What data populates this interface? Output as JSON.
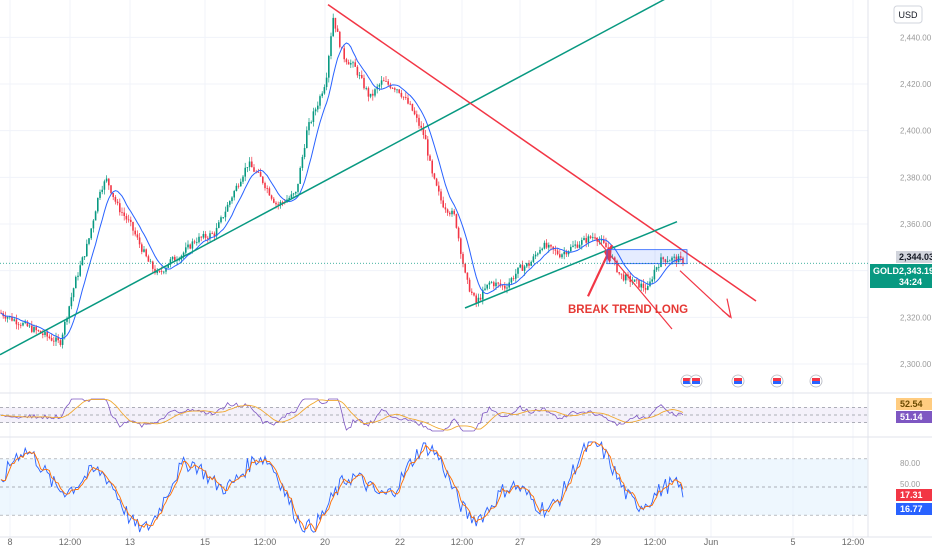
{
  "header": {
    "currency_label": "USD"
  },
  "colors": {
    "up": "#089981",
    "down": "#f23645",
    "ma": "#2962ff",
    "trend_red": "#f23645",
    "trend_green": "#089981",
    "rsi": "#7e57c2",
    "rsi_ma": "#f0a830",
    "stoch_k": "#2962ff",
    "stoch_d": "#ff6d00",
    "grid": "#f0f3fa",
    "band_fill": "#ede7f6"
  },
  "chart_data": [
    {
      "type": "candlestick",
      "symbol": "GOLD",
      "title": "",
      "xlabel": "",
      "ylabel": "",
      "ylim": [
        2288,
        2456
      ],
      "yticks": [
        "2,300.00",
        "2,320.00",
        "2,340.00",
        "2,360.00",
        "2,380.00",
        "2,400.00",
        "2,420.00",
        "2,440.00"
      ],
      "xticks": [
        "8",
        "12:00",
        "13",
        "15",
        "12:00",
        "20",
        "22",
        "12:00",
        "27",
        "29",
        "12:00",
        "Jun",
        "5",
        "12:00"
      ],
      "price_path": [
        [
          0,
          2322
        ],
        [
          60,
          2309
        ],
        [
          75,
          2335
        ],
        [
          88,
          2352
        ],
        [
          100,
          2375
        ],
        [
          107,
          2379
        ],
        [
          117,
          2368
        ],
        [
          130,
          2360
        ],
        [
          148,
          2344
        ],
        [
          158,
          2338
        ],
        [
          170,
          2344
        ],
        [
          182,
          2347
        ],
        [
          195,
          2353
        ],
        [
          215,
          2356
        ],
        [
          232,
          2372
        ],
        [
          248,
          2386
        ],
        [
          262,
          2379
        ],
        [
          277,
          2368
        ],
        [
          296,
          2373
        ],
        [
          307,
          2400
        ],
        [
          318,
          2412
        ],
        [
          326,
          2422
        ],
        [
          333,
          2449
        ],
        [
          343,
          2432
        ],
        [
          355,
          2427
        ],
        [
          370,
          2414
        ],
        [
          382,
          2421
        ],
        [
          398,
          2418
        ],
        [
          412,
          2409
        ],
        [
          425,
          2397
        ],
        [
          432,
          2381
        ],
        [
          442,
          2369
        ],
        [
          455,
          2363
        ],
        [
          466,
          2336
        ],
        [
          476,
          2326
        ],
        [
          490,
          2335
        ],
        [
          505,
          2333
        ],
        [
          520,
          2341
        ],
        [
          530,
          2343
        ],
        [
          542,
          2351
        ],
        [
          560,
          2347
        ],
        [
          580,
          2352
        ],
        [
          595,
          2355
        ],
        [
          608,
          2349
        ],
        [
          620,
          2338
        ],
        [
          635,
          2335
        ],
        [
          648,
          2332
        ],
        [
          655,
          2341
        ],
        [
          662,
          2345
        ],
        [
          675,
          2345
        ],
        [
          685,
          2344
        ]
      ],
      "last_price": "2,343.19",
      "prev_price_label": "2,344.03",
      "countdown": "34:24",
      "annotations": {
        "break_label": "BREAK TREND LONG"
      },
      "trendlines": [
        "rising support",
        "falling resistance",
        "lower channel support",
        "short-term resistance"
      ],
      "event_flags": 5
    },
    {
      "type": "line",
      "name": "",
      "ylim": [
        0,
        100
      ],
      "bands": [
        70,
        50,
        30
      ],
      "current_values": [
        "52.54",
        "51.14"
      ]
    },
    {
      "type": "line",
      "name": "",
      "ylim": [
        0,
        100
      ],
      "bands": [
        80,
        50,
        20
      ],
      "yticks": [
        "80.00",
        "50.00"
      ],
      "current_values": [
        "17.31",
        "16.77"
      ]
    }
  ]
}
